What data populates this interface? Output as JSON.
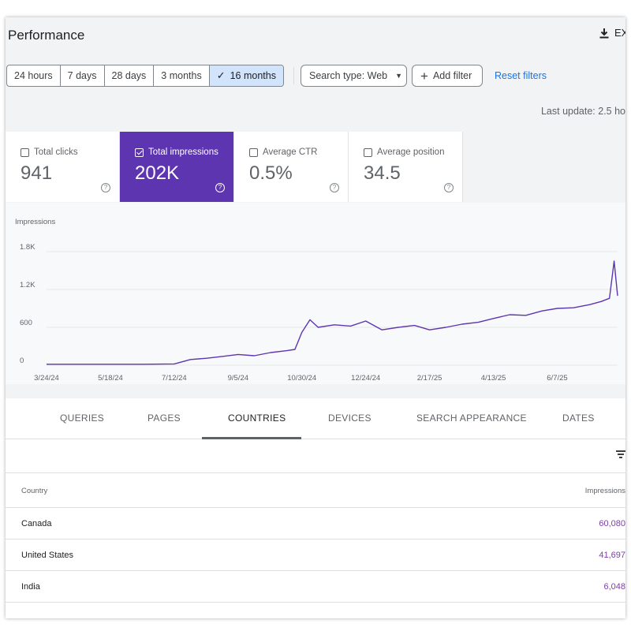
{
  "header": {
    "title": "Performance",
    "export_label": "EX"
  },
  "filters": {
    "date_ranges": [
      "24 hours",
      "7 days",
      "28 days",
      "3 months",
      "16 months"
    ],
    "selected": "16 months",
    "search_type": "Search type: Web",
    "add_filter": "Add filter",
    "reset": "Reset filters"
  },
  "last_update": "Last update: 2.5 ho",
  "metrics": [
    {
      "label": "Total clicks",
      "value": "941",
      "checked": false
    },
    {
      "label": "Total impressions",
      "value": "202K",
      "checked": true
    },
    {
      "label": "Average CTR",
      "value": "0.5%",
      "checked": false
    },
    {
      "label": "Average position",
      "value": "34.5",
      "checked": false
    }
  ],
  "colors": {
    "accent": "#5e35b1",
    "link": "#1a73e8",
    "value_purple": "#7b3fa1"
  },
  "chart_data": {
    "type": "line",
    "title": "",
    "ylabel": "Impressions",
    "xlabel": "",
    "ylim": [
      0,
      1800
    ],
    "y_ticks": [
      "0",
      "600",
      "1.2K",
      "1.8K"
    ],
    "y_tick_values": [
      0,
      600,
      1200,
      1800
    ],
    "x_tick_labels": [
      "3/24/24",
      "5/18/24",
      "7/12/24",
      "9/5/24",
      "10/30/24",
      "12/24/24",
      "2/17/25",
      "4/13/25",
      "6/7/25"
    ],
    "x_start": "3/24/24",
    "x_end": "7/29/25",
    "grid": true,
    "series": [
      {
        "color": "#5e35b1",
        "x": [
          "3/24/24",
          "4/21/24",
          "5/18/24",
          "6/15/24",
          "7/12/24",
          "7/26/24",
          "8/9/24",
          "8/23/24",
          "9/5/24",
          "9/19/24",
          "10/3/24",
          "10/17/24",
          "10/24/24",
          "10/30/24",
          "11/6/24",
          "11/13/24",
          "11/27/24",
          "12/11/24",
          "12/24/24",
          "1/7/25",
          "1/21/25",
          "2/4/25",
          "2/17/25",
          "3/3/25",
          "3/17/25",
          "3/31/25",
          "4/13/25",
          "4/27/25",
          "5/11/25",
          "5/25/25",
          "6/7/25",
          "6/21/25",
          "7/5/25",
          "7/15/25",
          "7/22/25",
          "7/26/25",
          "7/29/25"
        ],
        "values": [
          15,
          15,
          15,
          15,
          20,
          90,
          110,
          140,
          170,
          150,
          200,
          230,
          250,
          520,
          720,
          600,
          640,
          620,
          700,
          560,
          600,
          630,
          560,
          600,
          650,
          680,
          740,
          800,
          790,
          860,
          900,
          910,
          960,
          1010,
          1060,
          1650,
          1100
        ]
      }
    ]
  },
  "tabs": [
    "QUERIES",
    "PAGES",
    "COUNTRIES",
    "DEVICES",
    "SEARCH APPEARANCE",
    "DATES"
  ],
  "active_tab": "COUNTRIES",
  "table": {
    "headers": {
      "country": "Country",
      "impressions": "Impressions"
    },
    "rows": [
      {
        "country": "Canada",
        "impressions": "60,080"
      },
      {
        "country": "United States",
        "impressions": "41,697"
      },
      {
        "country": "India",
        "impressions": "6,048"
      }
    ]
  }
}
